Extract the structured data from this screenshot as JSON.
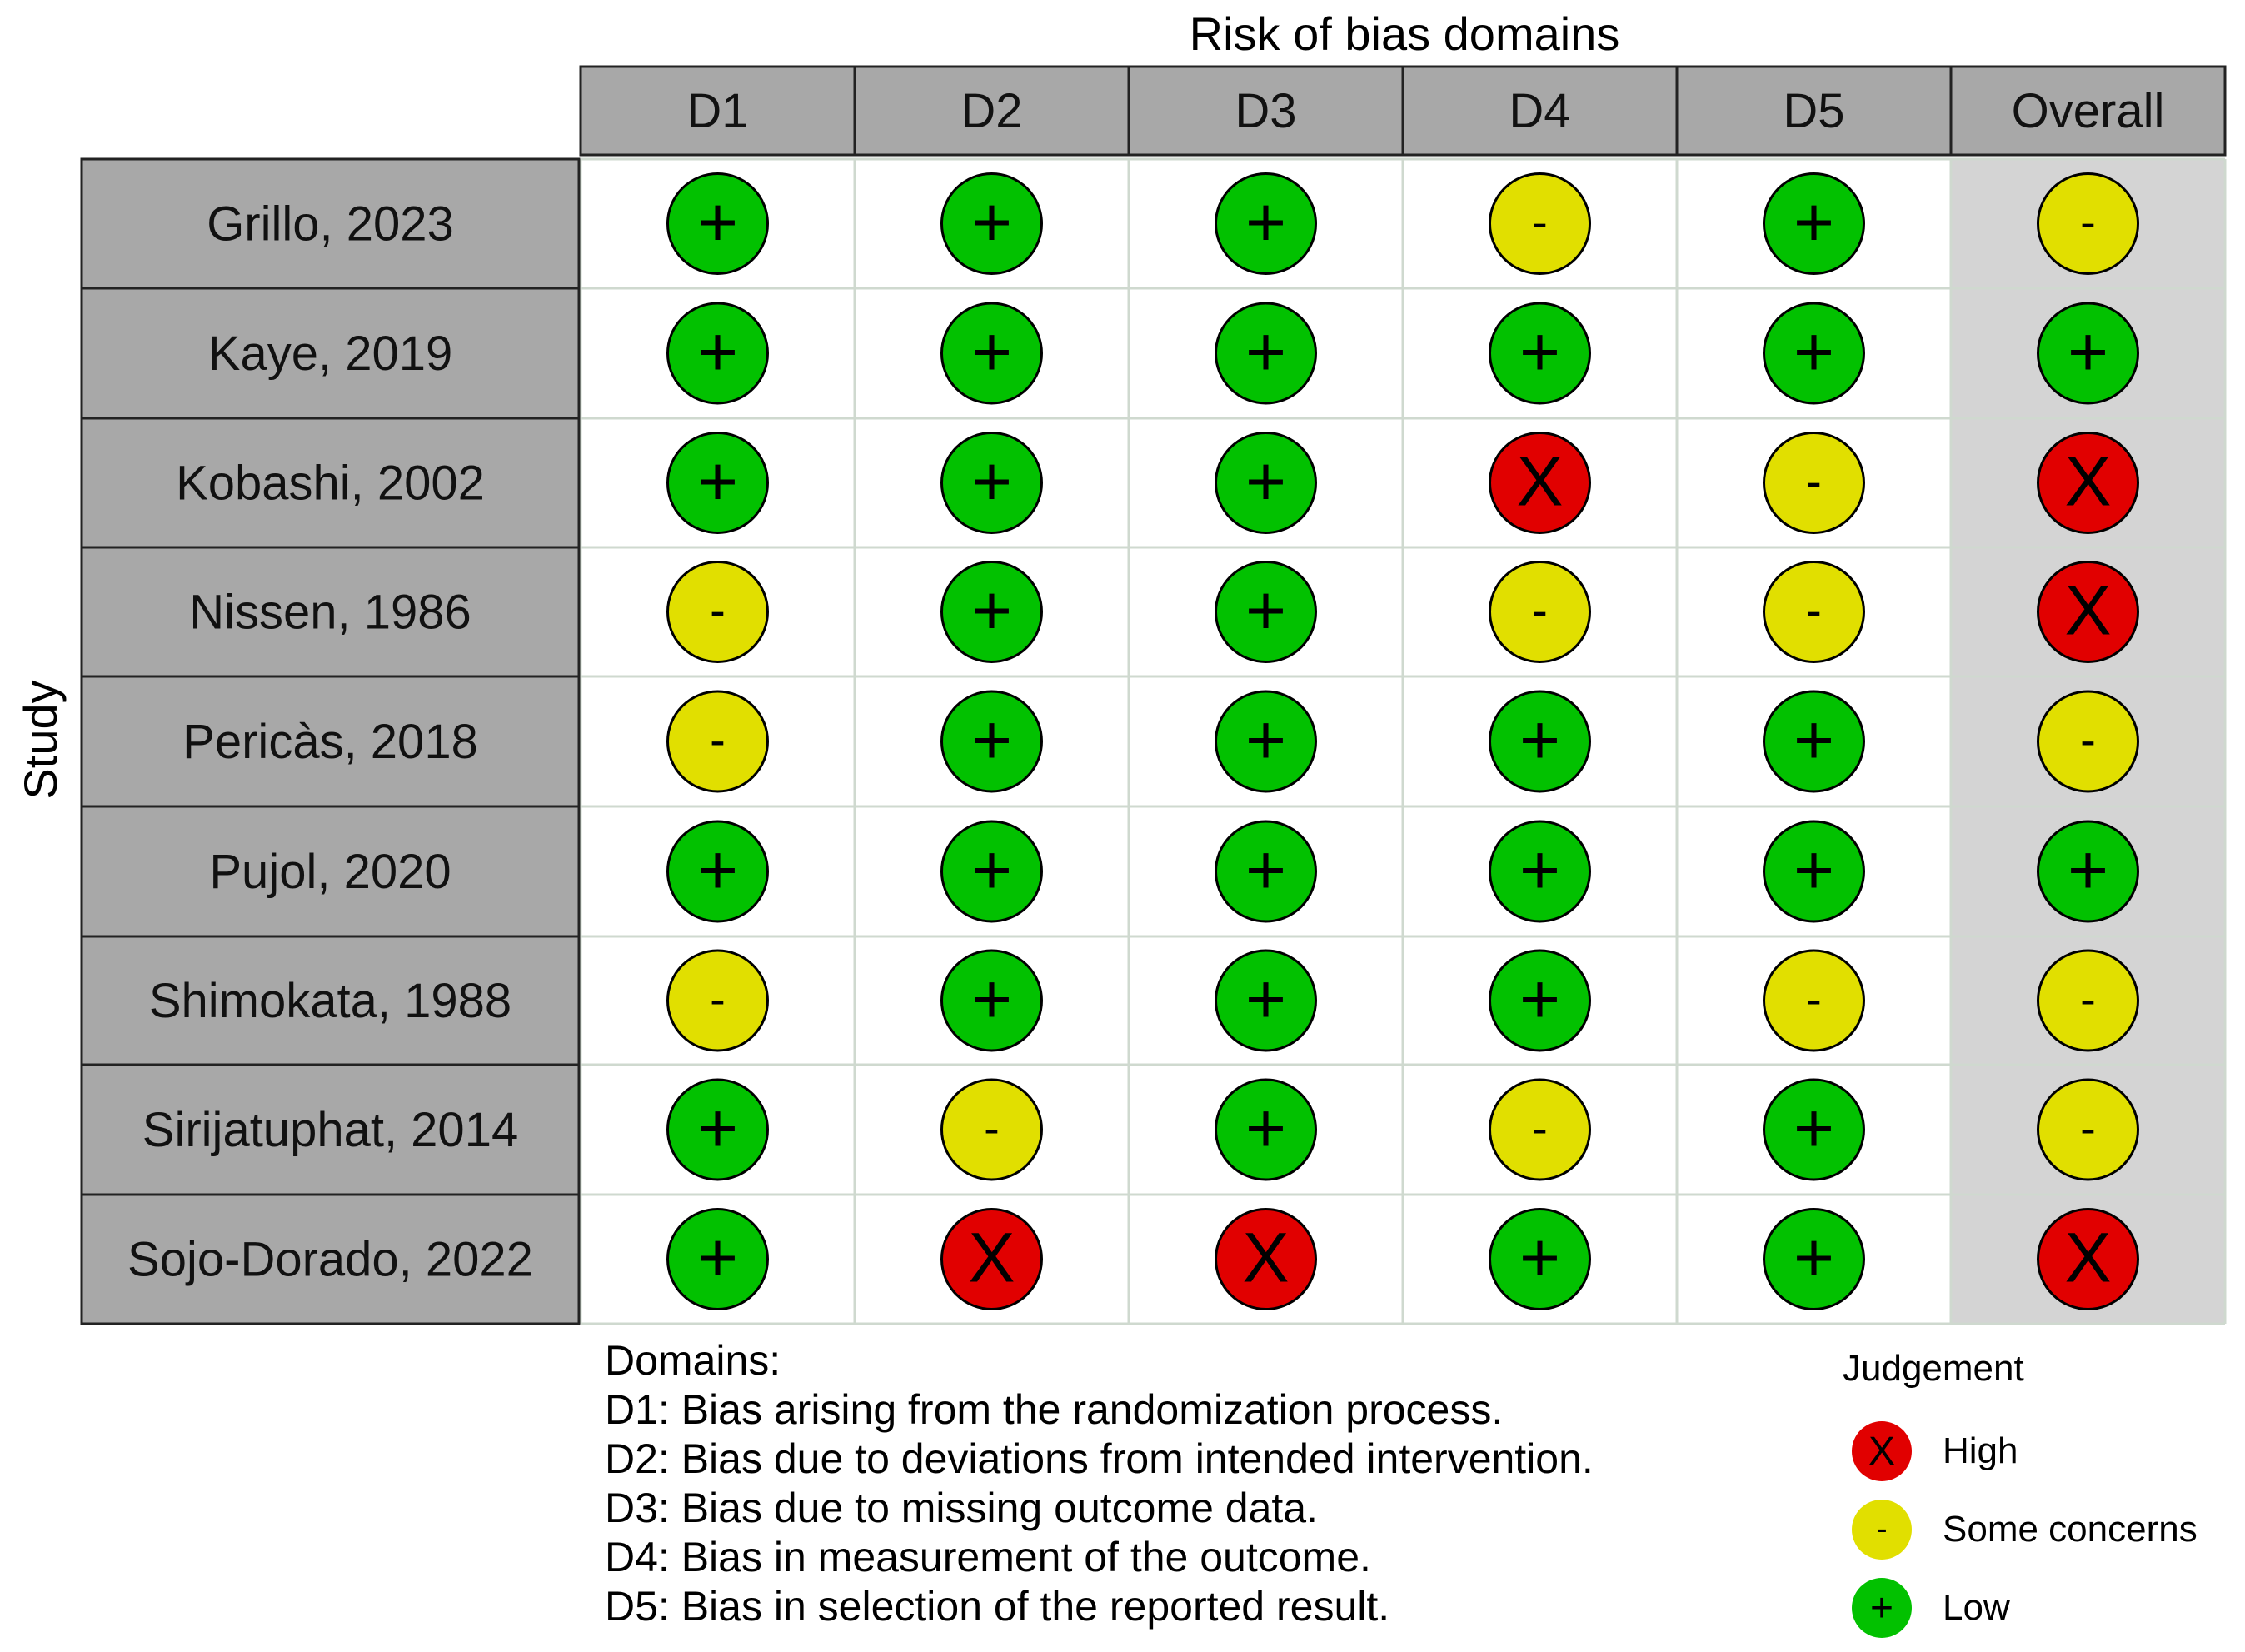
{
  "chart_data": {
    "type": "table",
    "title": "Risk of bias domains",
    "ylabel": "Study",
    "columns": [
      "D1",
      "D2",
      "D3",
      "D4",
      "D5",
      "Overall"
    ],
    "studies": [
      "Grillo, 2023",
      "Kaye, 2019",
      "Kobashi, 2002",
      "Nissen, 1986",
      "Pericàs, 2018",
      "Pujol, 2020",
      "Shimokata, 1988",
      "Sirijatuphat, 2014",
      "Sojo-Dorado, 2022"
    ],
    "judgements": [
      [
        "low",
        "low",
        "low",
        "some",
        "low",
        "some"
      ],
      [
        "low",
        "low",
        "low",
        "low",
        "low",
        "low"
      ],
      [
        "low",
        "low",
        "low",
        "high",
        "some",
        "high"
      ],
      [
        "some",
        "low",
        "low",
        "some",
        "some",
        "high"
      ],
      [
        "some",
        "low",
        "low",
        "low",
        "low",
        "some"
      ],
      [
        "low",
        "low",
        "low",
        "low",
        "low",
        "low"
      ],
      [
        "some",
        "low",
        "low",
        "low",
        "some",
        "some"
      ],
      [
        "low",
        "some",
        "low",
        "some",
        "low",
        "some"
      ],
      [
        "low",
        "high",
        "high",
        "low",
        "low",
        "high"
      ]
    ],
    "symbols": {
      "low": "+",
      "some": "-",
      "high": "X"
    },
    "colors": {
      "low": "#02C100",
      "some": "#E1DF00",
      "high": "#E10000",
      "header": "#A8A8A8",
      "overall_bg": "#D4D4D4"
    },
    "domains_title": "Domains:",
    "domains": [
      "D1: Bias arising from the randomization process.",
      "D2: Bias due to deviations from intended intervention.",
      "D3: Bias due to missing outcome data.",
      "D4: Bias in measurement of the outcome.",
      "D5: Bias in selection of the reported result."
    ],
    "legend": {
      "title": "Judgement",
      "items": [
        {
          "key": "high",
          "symbol": "X",
          "label": "High"
        },
        {
          "key": "some",
          "symbol": "-",
          "label": "Some concerns"
        },
        {
          "key": "low",
          "symbol": "+",
          "label": "Low"
        }
      ]
    }
  }
}
